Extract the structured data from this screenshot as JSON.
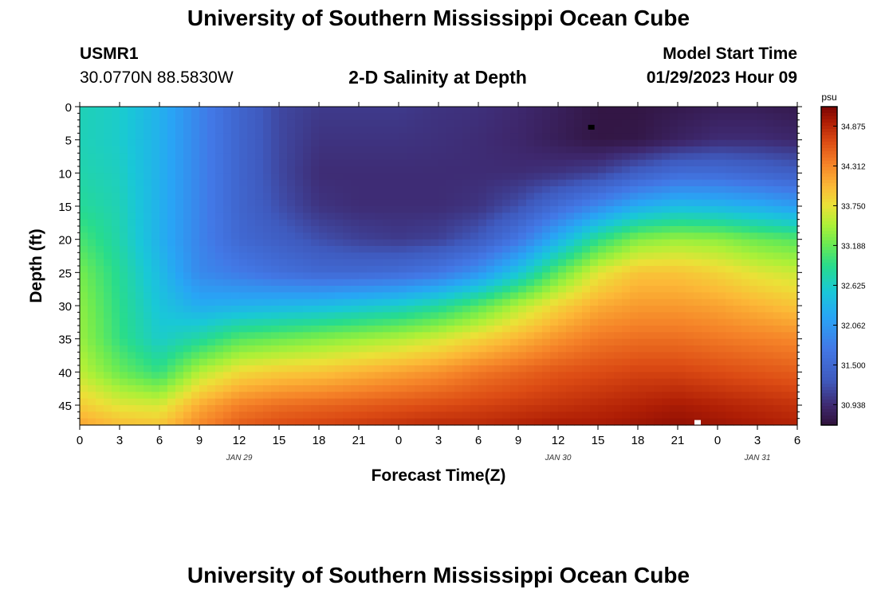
{
  "header": {
    "title": "University of Southern Mississippi Ocean Cube",
    "station_id": "USMR1",
    "coords": "30.0770N  88.5830W",
    "plot_title": "2-D Salinity at Depth",
    "model_label": "Model Start Time",
    "model_time": "01/29/2023 Hour 09"
  },
  "footer": {
    "title": "University of Southern Mississippi Ocean Cube"
  },
  "chart_data": {
    "type": "heatmap",
    "title": "2-D Salinity at Depth",
    "xlabel": "Forecast Time(Z)",
    "ylabel": "Depth (ft)",
    "x_range_hours": [
      0,
      54
    ],
    "y_range_ft": [
      0,
      48
    ],
    "x_tick_hours": [
      0,
      3,
      6,
      9,
      12,
      15,
      18,
      21,
      24,
      27,
      30,
      33,
      36,
      39,
      42,
      45,
      48,
      51,
      54
    ],
    "x_tick_labels": [
      "0",
      "3",
      "6",
      "9",
      "12",
      "15",
      "18",
      "21",
      "0",
      "3",
      "6",
      "9",
      "12",
      "15",
      "18",
      "21",
      "0",
      "3",
      "6"
    ],
    "date_labels": [
      {
        "hour": 12,
        "text": "JAN 29"
      },
      {
        "hour": 36,
        "text": "JAN 30"
      },
      {
        "hour": 51,
        "text": "JAN 31"
      }
    ],
    "y_ticks": [
      0,
      5,
      10,
      15,
      20,
      25,
      30,
      35,
      40,
      45
    ],
    "colorbar": {
      "unit": "psu",
      "min": 30.65,
      "max": 35.15,
      "tick_values": [
        34.875,
        34.312,
        33.75,
        33.188,
        32.625,
        32.062,
        31.5,
        30.938
      ],
      "tick_labels": [
        "34.875",
        "34.312",
        "33.750",
        "33.188",
        "32.625",
        "32.062",
        "31.500",
        "30.938"
      ]
    },
    "salinity_field": {
      "units": "psu",
      "description": "salinity interpolated along columns (time) and rows (depth)",
      "x_hours": [
        0,
        3,
        6,
        9,
        12,
        15,
        18,
        21,
        24,
        27,
        30,
        33,
        36,
        39,
        42,
        45,
        48,
        51,
        54
      ],
      "depths_ft": [
        0,
        5,
        10,
        15,
        20,
        25,
        30,
        35,
        40,
        45,
        48
      ],
      "values": [
        [
          32.7,
          32.6,
          32.3,
          31.85,
          31.45,
          31.15,
          31.05,
          31.05,
          31.05,
          31.0,
          30.98,
          30.92,
          30.82,
          30.7,
          30.7,
          30.75,
          30.8,
          30.8,
          30.75
        ],
        [
          32.7,
          32.6,
          32.3,
          31.85,
          31.45,
          31.15,
          31.0,
          31.0,
          31.0,
          30.98,
          30.95,
          30.9,
          30.8,
          30.7,
          30.72,
          30.85,
          30.95,
          30.95,
          30.9
        ],
        [
          32.75,
          32.65,
          32.3,
          31.85,
          31.45,
          31.15,
          30.95,
          30.95,
          30.95,
          30.95,
          30.95,
          30.95,
          31.0,
          31.1,
          31.35,
          31.55,
          31.55,
          31.45,
          31.35
        ],
        [
          32.85,
          32.7,
          32.3,
          31.85,
          31.45,
          31.2,
          31.0,
          30.95,
          30.95,
          30.95,
          31.0,
          31.2,
          31.55,
          31.9,
          32.25,
          32.4,
          32.35,
          32.25,
          32.1
        ],
        [
          33.05,
          32.75,
          32.3,
          31.85,
          31.5,
          31.35,
          31.2,
          31.1,
          31.05,
          31.1,
          31.3,
          31.7,
          32.3,
          32.9,
          33.3,
          33.4,
          33.35,
          33.2,
          33.1
        ],
        [
          33.25,
          32.85,
          32.4,
          31.9,
          31.75,
          31.6,
          31.5,
          31.5,
          31.55,
          31.7,
          32.0,
          32.5,
          33.15,
          33.7,
          33.95,
          33.95,
          33.85,
          33.7,
          33.6
        ],
        [
          33.35,
          32.9,
          32.5,
          32.25,
          32.3,
          32.35,
          32.4,
          32.5,
          32.6,
          32.8,
          33.1,
          33.5,
          33.85,
          34.1,
          34.2,
          34.2,
          34.15,
          34.05,
          33.95
        ],
        [
          33.4,
          32.95,
          32.6,
          32.8,
          33.1,
          33.2,
          33.3,
          33.4,
          33.5,
          33.65,
          33.85,
          34.05,
          34.25,
          34.4,
          34.45,
          34.45,
          34.4,
          34.35,
          34.3
        ],
        [
          33.55,
          33.2,
          32.95,
          33.5,
          33.8,
          33.9,
          33.95,
          34.05,
          34.15,
          34.25,
          34.4,
          34.5,
          34.6,
          34.65,
          34.7,
          34.7,
          34.65,
          34.6,
          34.55
        ],
        [
          33.9,
          33.7,
          33.65,
          34.1,
          34.35,
          34.45,
          34.5,
          34.55,
          34.6,
          34.65,
          34.7,
          34.75,
          34.8,
          34.85,
          34.9,
          34.95,
          34.9,
          34.85,
          34.8
        ],
        [
          34.15,
          34.0,
          33.95,
          34.3,
          34.55,
          34.65,
          34.7,
          34.75,
          34.8,
          34.85,
          34.85,
          34.9,
          34.95,
          34.95,
          35.0,
          35.05,
          35.0,
          34.95,
          34.9
        ]
      ]
    },
    "markers": [
      {
        "hour": 38.5,
        "depth_ft": 3.1,
        "color": "#000000"
      },
      {
        "hour": 46.5,
        "depth_ft": 47.6,
        "color": "#ffffff"
      }
    ]
  }
}
